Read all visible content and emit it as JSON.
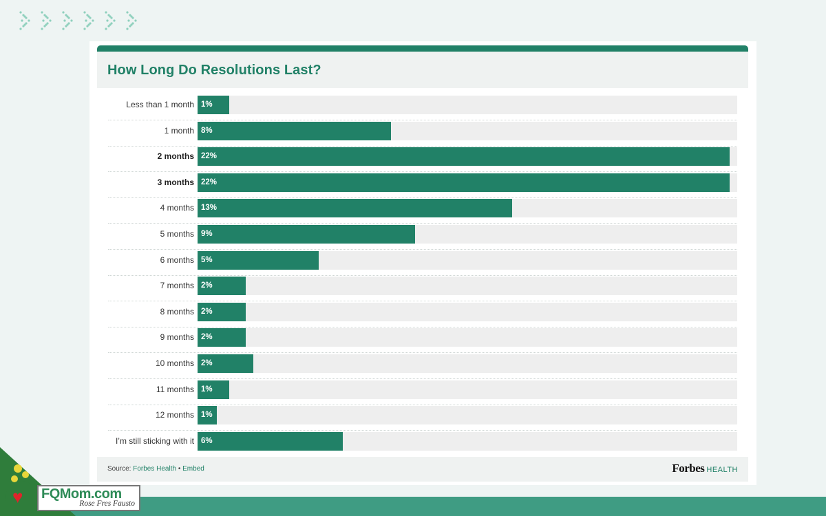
{
  "chart_data": {
    "type": "bar",
    "orientation": "horizontal",
    "title": "How Long Do Resolutions Last?",
    "categories": [
      "Less than 1 month",
      "1 month",
      "2 months",
      "3 months",
      "4 months",
      "5 months",
      "6 months",
      "7 months",
      "8 months",
      "9 months",
      "10 months",
      "11 months",
      "12 months",
      "I’m still sticking with it"
    ],
    "values": [
      1.3,
      8,
      22,
      22,
      13,
      9,
      5,
      2,
      2,
      2,
      2.3,
      1.3,
      0.8,
      6
    ],
    "value_labels": [
      "1%",
      "8%",
      "22%",
      "22%",
      "13%",
      "9%",
      "5%",
      "2%",
      "2%",
      "2%",
      "2%",
      "1%",
      "1%",
      "6%"
    ],
    "emphasized_categories": [
      "2 months",
      "3 months"
    ],
    "xlim": [
      0,
      22.3
    ],
    "bar_color": "#218167",
    "track_color": "#eeeeee",
    "grid": false,
    "legend": "none"
  },
  "footer": {
    "source_prefix": "Source:",
    "source_link": "Forbes Health",
    "separator": "•",
    "embed_link": "Embed"
  },
  "brand": {
    "name": "Forbes",
    "sub": "HEALTH"
  },
  "watermark": {
    "name": "FQMom.com",
    "tagline": "Rose Fres Fausto"
  },
  "colors": {
    "accent": "#218167",
    "page_bg": "#eef4f3",
    "band": "#3f9c83"
  }
}
